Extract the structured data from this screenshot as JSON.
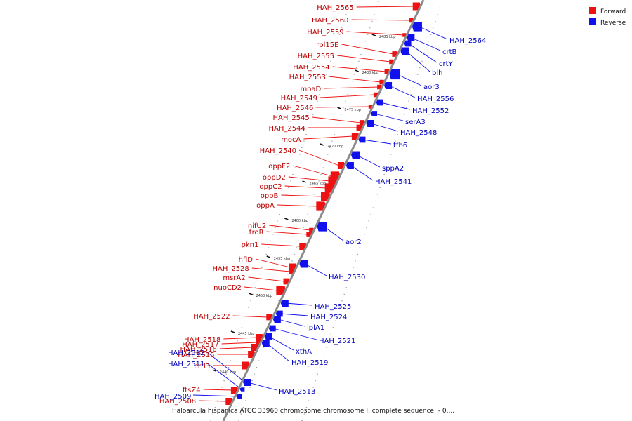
{
  "caption": "Haloarcula hispanica ATCC 33960 chromosome chromosome I, complete sequence. - 0....",
  "legend": [
    {
      "label": "Forward",
      "color": "#ee1111"
    },
    {
      "label": "Reverse",
      "color": "#1111ee"
    }
  ],
  "colors": {
    "forward": "#ee1111",
    "reverse": "#1111ee",
    "backbone": "#888888",
    "forward_label": "#bb0000",
    "reverse_label": "#0000bb"
  },
  "ticks": [
    "2440 kbp",
    "2445 kbp",
    "2450 kbp",
    "2455 kbp",
    "2460 kbp",
    "2465 kbp",
    "2470 kbp",
    "2475 kbp",
    "2480 kbp",
    "2485 kbp"
  ],
  "forward_genes": [
    "HAH_2565",
    "HAH_2560",
    "HAH_2559",
    "rpl15E",
    "HAH_2555",
    "HAH_2554",
    "HAH_2553",
    "moaD",
    "HAH_2549",
    "HAH_2546",
    "HAH_2545",
    "HAH_2544",
    "mocA",
    "HAH_2540",
    "oppF2",
    "oppD2",
    "oppC2",
    "oppB",
    "oppA",
    "nifU2",
    "troR",
    "pkn1",
    "hflD",
    "HAH_2528",
    "msrA2",
    "nuoCD2",
    "HAH_2522",
    "HAH_2518",
    "HAH_2517",
    "HAH_2516",
    "HAH_2515",
    "crtI3",
    "ftsZ4",
    "HAH_2508"
  ],
  "reverse_genes": [
    "HAH_2564",
    "crtB",
    "crtY",
    "blh",
    "aor3",
    "HAH_2556",
    "HAH_2552",
    "serA3",
    "HAH_2548",
    "tfb6",
    "sppA2",
    "HAH_2541",
    "aor2",
    "HAH_2530",
    "HAH_2525",
    "HAH_2524",
    "lplA1",
    "HAH_2521",
    "xthA",
    "HAH_2519",
    "HAH_2512",
    "HAH_2511",
    "HAH_2513",
    "HAH_2509"
  ]
}
